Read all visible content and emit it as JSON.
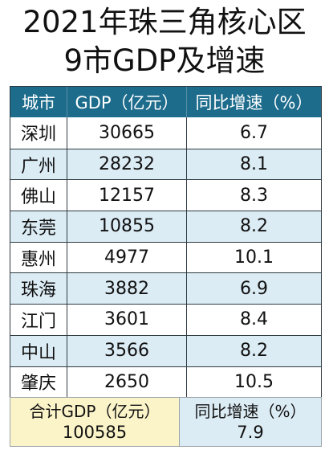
{
  "title": {
    "line1": "2021年珠三角核心区",
    "line2": "9市GDP及增速"
  },
  "chart_data": {
    "type": "table",
    "columns": [
      "城市",
      "GDP（亿元）",
      "同比增速（%）"
    ],
    "rows": [
      {
        "city": "深圳",
        "gdp": "30665",
        "growth": "6.7"
      },
      {
        "city": "广州",
        "gdp": "28232",
        "growth": "8.1"
      },
      {
        "city": "佛山",
        "gdp": "12157",
        "growth": "8.3"
      },
      {
        "city": "东莞",
        "gdp": "10855",
        "growth": "8.2"
      },
      {
        "city": "惠州",
        "gdp": "4977",
        "growth": "10.1"
      },
      {
        "city": "珠海",
        "gdp": "3882",
        "growth": "6.9"
      },
      {
        "city": "江门",
        "gdp": "3601",
        "growth": "8.4"
      },
      {
        "city": "中山",
        "gdp": "3566",
        "growth": "8.2"
      },
      {
        "city": "肇庆",
        "gdp": "2650",
        "growth": "10.5"
      }
    ],
    "total": {
      "gdp_label": "合计GDP（亿元）",
      "gdp_value": "100585",
      "growth_label": "同比增速（%）",
      "growth_value": "7.9"
    }
  },
  "colors": {
    "header_bg": "#1d6c8c",
    "row_alt_bg": "#dcecf5",
    "total_bg": "#fbf4c9"
  }
}
